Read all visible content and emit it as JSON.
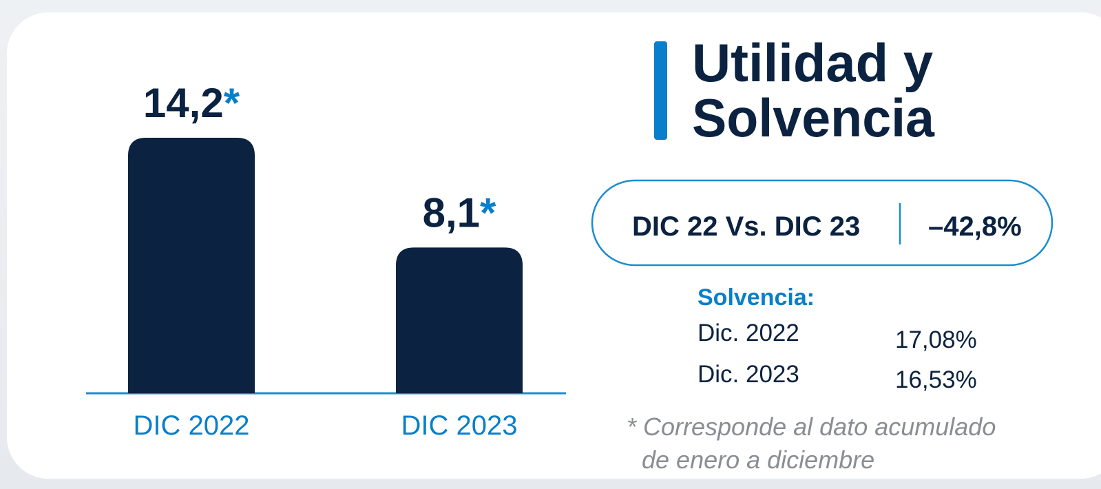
{
  "chart_data": {
    "type": "bar",
    "categories": [
      "DIC 2022",
      "DIC 2023"
    ],
    "values": [
      14.2,
      8.1
    ],
    "value_labels": [
      "14,2",
      "8,1"
    ],
    "note_mark": "*",
    "color": "#0b2240"
  },
  "title": {
    "lines": [
      "Utilidad y",
      "Solvencia"
    ]
  },
  "comparison": {
    "label": "DIC 22 Vs. DIC 23",
    "value": "–42,8%"
  },
  "solvencia": {
    "heading": "Solvencia:",
    "rows": [
      [
        "Dic. 2022",
        "17,08%"
      ],
      [
        "Dic. 2023",
        "16,53%"
      ]
    ]
  },
  "footnote": {
    "lines": [
      "* Corresponde al dato acumulado",
      "de enero a diciembre"
    ]
  }
}
